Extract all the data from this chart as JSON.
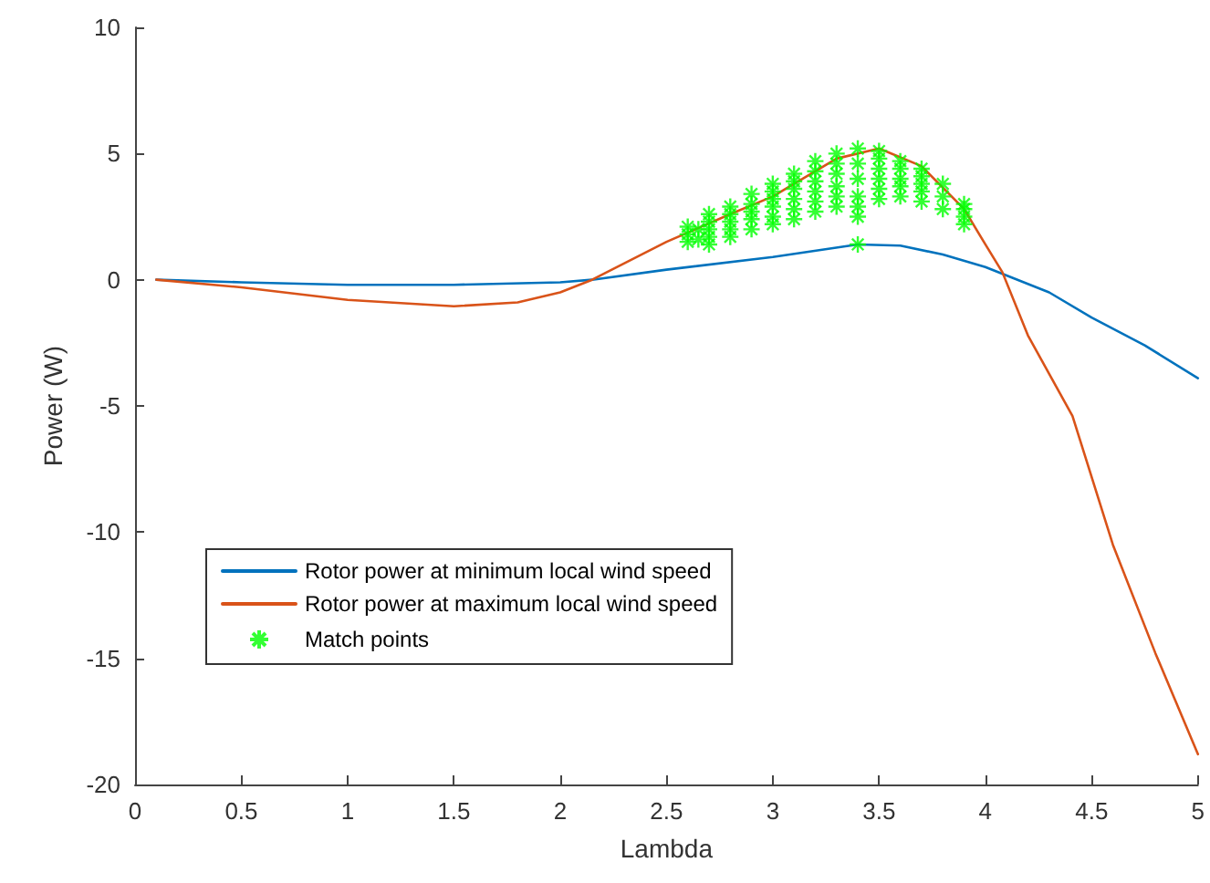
{
  "chart_data": {
    "type": "line",
    "xlabel": "Lambda",
    "ylabel": "Power (W)",
    "xlim": [
      0,
      5
    ],
    "ylim": [
      -20,
      10
    ],
    "xticks": [
      0,
      0.5,
      1,
      1.5,
      2,
      2.5,
      3,
      3.5,
      4,
      4.5,
      5
    ],
    "yticks": [
      -20,
      -15,
      -10,
      -5,
      0,
      5,
      10
    ],
    "grid": false,
    "legend": "bottom left",
    "line_style": "solid",
    "series": [
      {
        "name": "Rotor power at minimum local wind speed",
        "color": "#0072bd",
        "marker": "none",
        "x": [
          0.1,
          0.5,
          1,
          1.5,
          2,
          2.15,
          2.5,
          3,
          3.4,
          3.6,
          3.8,
          4,
          4.3,
          4.5,
          4.75,
          5
        ],
        "values": [
          0,
          -0.1,
          -0.2,
          -0.2,
          -0.1,
          0,
          0.4,
          0.9,
          1.4,
          1.35,
          1,
          0.5,
          -0.5,
          -1.5,
          -2.6,
          -3.9
        ]
      },
      {
        "name": "Rotor power at maximum local wind speed",
        "color": "#d95319",
        "marker": "none",
        "x": [
          0.1,
          0.5,
          1,
          1.5,
          1.8,
          2,
          2.15,
          2.5,
          2.8,
          3,
          3.3,
          3.5,
          3.7,
          3.9,
          4,
          4.08,
          4.2,
          4.41,
          4.6,
          4.8,
          5
        ],
        "values": [
          0,
          -0.3,
          -0.8,
          -1.05,
          -0.9,
          -0.5,
          0,
          1.5,
          2.6,
          3.3,
          4.8,
          5.2,
          4.5,
          2.8,
          1.4,
          0.3,
          -2.2,
          -5.4,
          -10.5,
          -14.8,
          -18.8
        ]
      },
      {
        "name": "Match points",
        "color": "#00ff00",
        "type": "scatter",
        "marker": "cross",
        "x": [
          2.6,
          2.6,
          2.6,
          2.65,
          2.65,
          2.7,
          2.7,
          2.7,
          2.7,
          2.7,
          2.8,
          2.8,
          2.8,
          2.8,
          2.8,
          2.9,
          2.9,
          2.9,
          2.9,
          2.9,
          3,
          3,
          3,
          3,
          3,
          3,
          3.1,
          3.1,
          3.1,
          3.1,
          3.1,
          3.1,
          3.2,
          3.2,
          3.2,
          3.2,
          3.2,
          3.2,
          3.3,
          3.3,
          3.3,
          3.3,
          3.3,
          3.3,
          3.4,
          3.4,
          3.4,
          3.4,
          3.4,
          3.4,
          3.4,
          3.5,
          3.5,
          3.5,
          3.5,
          3.5,
          3.5,
          3.6,
          3.6,
          3.6,
          3.6,
          3.6,
          3.7,
          3.7,
          3.7,
          3.7,
          3.7,
          3.8,
          3.8,
          3.8,
          3.9,
          3.9,
          3.9,
          3.9
        ],
        "values": [
          1.5,
          1.8,
          2.1,
          1.6,
          2.0,
          1.4,
          1.7,
          2.0,
          2.3,
          2.6,
          1.7,
          2.0,
          2.3,
          2.6,
          2.9,
          2.0,
          2.4,
          2.7,
          3.0,
          3.4,
          2.2,
          2.5,
          2.9,
          3.2,
          3.5,
          3.8,
          2.4,
          2.8,
          3.2,
          3.6,
          3.9,
          4.2,
          2.7,
          3.1,
          3.5,
          3.9,
          4.3,
          4.7,
          2.9,
          3.3,
          3.7,
          4.2,
          4.6,
          5.0,
          1.4,
          2.5,
          2.9,
          3.3,
          4.0,
          4.6,
          5.2,
          3.2,
          3.6,
          4.0,
          4.4,
          4.8,
          5.1,
          3.3,
          3.7,
          4.0,
          4.4,
          4.7,
          3.1,
          3.5,
          3.8,
          4.1,
          4.4,
          2.8,
          3.3,
          3.8,
          2.2,
          2.5,
          2.8,
          3.0
        ]
      }
    ]
  }
}
